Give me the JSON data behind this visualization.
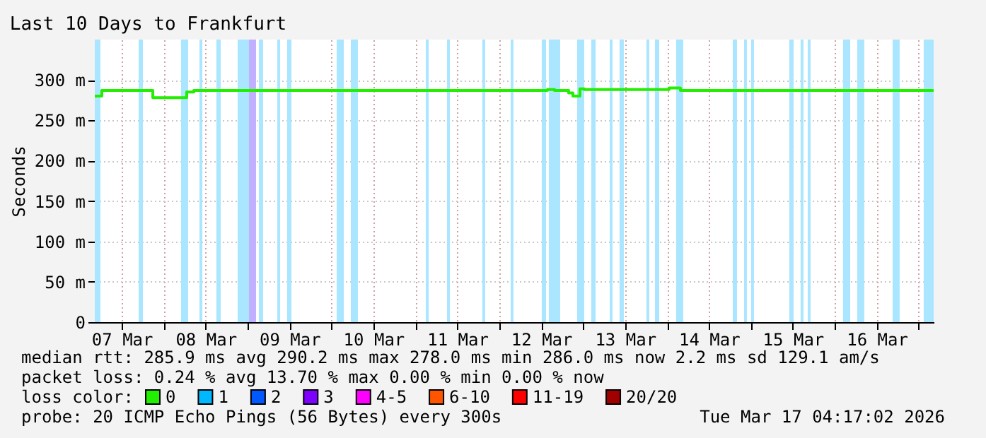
{
  "chart_data": {
    "type": "step",
    "title": "Last 10 Days to Frankfurt",
    "ylabel": "Seconds",
    "xlim": [
      "2026-03-07T04:17",
      "2026-03-17T04:17"
    ],
    "xticks": [
      {
        "value": "2026-03-07T12:00",
        "label": "07 Mar"
      },
      {
        "value": "2026-03-08T00:00",
        "label": null
      },
      {
        "value": "2026-03-08T12:00",
        "label": "08 Mar"
      },
      {
        "value": "2026-03-09T00:00",
        "label": null
      },
      {
        "value": "2026-03-09T12:00",
        "label": "09 Mar"
      },
      {
        "value": "2026-03-10T00:00",
        "label": null
      },
      {
        "value": "2026-03-10T12:00",
        "label": "10 Mar"
      },
      {
        "value": "2026-03-11T00:00",
        "label": null
      },
      {
        "value": "2026-03-11T12:00",
        "label": "11 Mar"
      },
      {
        "value": "2026-03-12T00:00",
        "label": null
      },
      {
        "value": "2026-03-12T12:00",
        "label": "12 Mar"
      },
      {
        "value": "2026-03-13T00:00",
        "label": null
      },
      {
        "value": "2026-03-13T12:00",
        "label": "13 Mar"
      },
      {
        "value": "2026-03-14T00:00",
        "label": null
      },
      {
        "value": "2026-03-14T12:00",
        "label": "14 Mar"
      },
      {
        "value": "2026-03-15T00:00",
        "label": null
      },
      {
        "value": "2026-03-15T12:00",
        "label": "15 Mar"
      },
      {
        "value": "2026-03-16T00:00",
        "label": null
      },
      {
        "value": "2026-03-16T12:00",
        "label": "16 Mar"
      },
      {
        "value": "2026-03-17T00:00",
        "label": null
      }
    ],
    "ylim": [
      0,
      350
    ],
    "yticks": [
      0,
      {
        "value": 50,
        "label": "50 m"
      },
      {
        "value": 100,
        "label": "100 m"
      },
      {
        "value": 150,
        "label": "150 m"
      },
      {
        "value": 200,
        "label": "200 m"
      },
      {
        "value": 250,
        "label": "250 m"
      },
      {
        "value": 300,
        "label": "300 m"
      }
    ],
    "grid": true,
    "legend": "bottom left",
    "legend_title": "loss color:",
    "x": [
      "2026-03-07T04:17",
      "2026-03-07T06:18",
      "2026-03-07T20:53",
      "2026-03-08T06:35",
      "2026-03-08T08:37",
      "2026-03-12T13:47",
      "2026-03-12T15:49",
      "2026-03-12T19:51",
      "2026-03-12T21:04",
      "2026-03-12T23:05",
      "2026-03-13T00:19",
      "2026-03-14T00:36",
      "2026-03-14T03:50",
      "2026-03-17T04:17"
    ],
    "series": [
      {
        "name": "0",
        "color": "#22ee00",
        "values": [
          280,
          287,
          278,
          285,
          287,
          288,
          287,
          284,
          280,
          289,
          288,
          290,
          287,
          287
        ]
      },
      {
        "name": "1",
        "color": "#00b8ff",
        "values": [
          null,
          null,
          null,
          null,
          null,
          null,
          null,
          null,
          null,
          null,
          null,
          null,
          null,
          null
        ]
      },
      {
        "name": "2",
        "color": "#0059ff",
        "values": [
          null,
          null,
          null,
          null,
          null,
          null,
          null,
          null,
          null,
          null,
          null,
          null,
          null,
          null
        ]
      },
      {
        "name": "3",
        "color": "#7e00ff",
        "values": [
          null,
          null,
          null,
          null,
          null,
          null,
          null,
          null,
          null,
          null,
          null,
          null,
          null,
          null
        ]
      },
      {
        "name": "4-5",
        "color": "#ff00ff",
        "values": [
          null,
          null,
          null,
          null,
          null,
          null,
          null,
          null,
          null,
          null,
          null,
          null,
          null,
          null
        ]
      },
      {
        "name": "6-10",
        "color": "#ff5500",
        "values": [
          null,
          null,
          null,
          null,
          null,
          null,
          null,
          null,
          null,
          null,
          null,
          null,
          null,
          null
        ]
      },
      {
        "name": "11-19",
        "color": "#ff0000",
        "values": [
          null,
          null,
          null,
          null,
          null,
          null,
          null,
          null,
          null,
          null,
          null,
          null,
          null,
          null
        ]
      },
      {
        "name": "20/20",
        "color": "#a10000",
        "values": [
          null,
          null,
          null,
          null,
          null,
          null,
          null,
          null,
          null,
          null,
          null,
          null,
          null,
          null
        ]
      }
    ],
    "bands": [
      {
        "axis": "x",
        "from": "2026-03-07T04:17",
        "to": "2026-03-07T05:54",
        "color": "#aae6ff"
      },
      {
        "axis": "x",
        "from": "2026-03-07T16:50",
        "to": "2026-03-07T18:03",
        "color": "#aae6ff"
      },
      {
        "axis": "x",
        "from": "2026-03-08T04:58",
        "to": "2026-03-08T07:00",
        "color": "#aae6ff"
      },
      {
        "axis": "x",
        "from": "2026-03-08T10:14",
        "to": "2026-03-08T11:03",
        "color": "#aae6ff"
      },
      {
        "axis": "x",
        "from": "2026-03-08T15:05",
        "to": "2026-03-08T16:18",
        "color": "#aae6ff"
      },
      {
        "axis": "x",
        "from": "2026-03-08T21:09",
        "to": "2026-03-09T00:24",
        "color": "#aae6ff"
      },
      {
        "axis": "x",
        "from": "2026-03-09T00:24",
        "to": "2026-03-09T02:25",
        "color": "#c0b0ff"
      },
      {
        "axis": "x",
        "from": "2026-03-09T03:14",
        "to": "2026-03-09T04:27",
        "color": "#aae6ff"
      },
      {
        "axis": "x",
        "from": "2026-03-09T08:30",
        "to": "2026-03-09T09:18",
        "color": "#aae6ff"
      },
      {
        "axis": "x",
        "from": "2026-03-09T11:19",
        "to": "2026-03-09T12:32",
        "color": "#aae6ff"
      },
      {
        "axis": "x",
        "from": "2026-03-10T01:29",
        "to": "2026-03-10T03:31",
        "color": "#aae6ff"
      },
      {
        "axis": "x",
        "from": "2026-03-10T05:32",
        "to": "2026-03-10T07:33",
        "color": "#aae6ff"
      },
      {
        "axis": "x",
        "from": "2026-03-11T02:59",
        "to": "2026-03-11T03:48",
        "color": "#aae6ff"
      },
      {
        "axis": "x",
        "from": "2026-03-11T09:03",
        "to": "2026-03-11T09:52",
        "color": "#aae6ff"
      },
      {
        "axis": "x",
        "from": "2026-03-11T19:10",
        "to": "2026-03-11T19:59",
        "color": "#aae6ff"
      },
      {
        "axis": "x",
        "from": "2026-03-12T03:16",
        "to": "2026-03-12T04:04",
        "color": "#aae6ff"
      },
      {
        "axis": "x",
        "from": "2026-03-12T12:10",
        "to": "2026-03-12T13:23",
        "color": "#aae6ff"
      },
      {
        "axis": "x",
        "from": "2026-03-12T14:11",
        "to": "2026-03-12T17:26",
        "color": "#aae6ff"
      },
      {
        "axis": "x",
        "from": "2026-03-12T22:17",
        "to": "2026-03-13T00:19",
        "color": "#aae6ff"
      },
      {
        "axis": "x",
        "from": "2026-03-13T02:20",
        "to": "2026-03-13T03:33",
        "color": "#aae6ff"
      },
      {
        "axis": "x",
        "from": "2026-03-13T07:36",
        "to": "2026-03-13T08:24",
        "color": "#aae6ff"
      },
      {
        "axis": "x",
        "from": "2026-03-13T10:25",
        "to": "2026-03-13T11:38",
        "color": "#aae6ff"
      },
      {
        "axis": "x",
        "from": "2026-03-13T18:07",
        "to": "2026-03-13T18:55",
        "color": "#aae6ff"
      },
      {
        "axis": "x",
        "from": "2026-03-13T20:33",
        "to": "2026-03-13T21:46",
        "color": "#aae6ff"
      },
      {
        "axis": "x",
        "from": "2026-03-14T02:37",
        "to": "2026-03-14T04:38",
        "color": "#aae6ff"
      },
      {
        "axis": "x",
        "from": "2026-03-14T18:48",
        "to": "2026-03-14T20:01",
        "color": "#aae6ff"
      },
      {
        "axis": "x",
        "from": "2026-03-14T22:03",
        "to": "2026-03-14T22:51",
        "color": "#aae6ff"
      },
      {
        "axis": "x",
        "from": "2026-03-15T00:04",
        "to": "2026-03-15T00:52",
        "color": "#aae6ff"
      },
      {
        "axis": "x",
        "from": "2026-03-15T10:59",
        "to": "2026-03-15T12:12",
        "color": "#aae6ff"
      },
      {
        "axis": "x",
        "from": "2026-03-15T14:13",
        "to": "2026-03-15T15:02",
        "color": "#aae6ff"
      },
      {
        "axis": "x",
        "from": "2026-03-15T16:15",
        "to": "2026-03-15T17:04",
        "color": "#aae6ff"
      },
      {
        "axis": "x",
        "from": "2026-03-16T02:22",
        "to": "2026-03-16T04:24",
        "color": "#aae6ff"
      },
      {
        "axis": "x",
        "from": "2026-03-16T06:25",
        "to": "2026-03-16T08:26",
        "color": "#aae6ff"
      },
      {
        "axis": "x",
        "from": "2026-03-16T16:32",
        "to": "2026-03-16T18:33",
        "color": "#aae6ff"
      },
      {
        "axis": "x",
        "from": "2026-03-17T01:26",
        "to": "2026-03-17T04:17",
        "color": "#aae6ff"
      }
    ],
    "annotations": [
      "median rtt:  285.9 ms avg  290.2 ms max  278.0 ms min  286.0 ms now  2.2 ms sd  129.1    am/s",
      "packet loss: 0.24 % avg  13.70 % max  0.00 % min  0.00 % now",
      "probe:        20 ICMP Echo Pings (56 Bytes) every 300s",
      "Tue Mar 17 04:17:02 2026"
    ]
  }
}
